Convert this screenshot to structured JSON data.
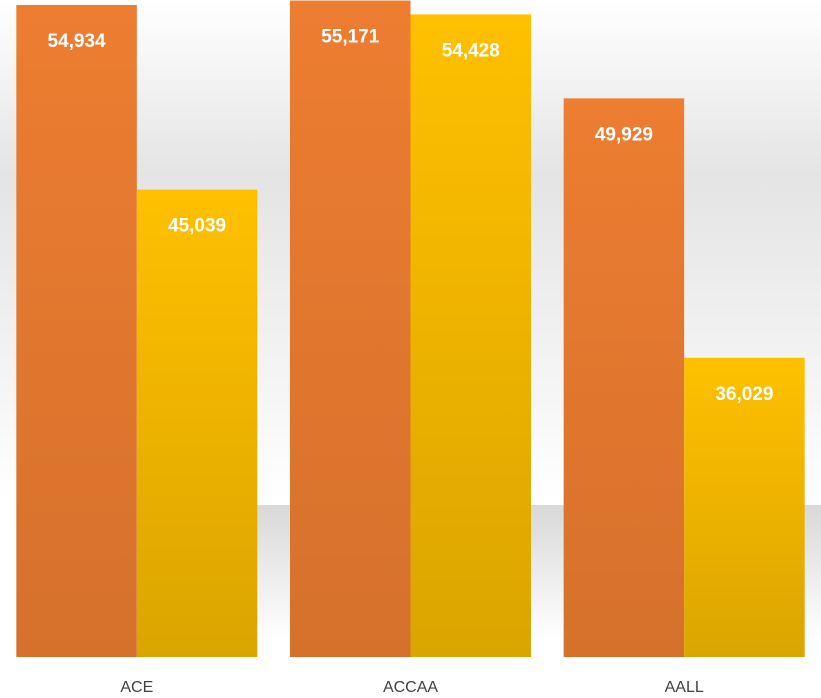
{
  "chart_data": {
    "type": "bar",
    "categories": [
      "ACE",
      "ACCAA",
      "AALL"
    ],
    "series": [
      {
        "color": "#ED7D31",
        "values": [
          54934,
          55171,
          49929
        ],
        "value_labels": [
          "54,934",
          "55,171",
          "49,929"
        ]
      },
      {
        "color": "#FFC000",
        "values": [
          45039,
          54428,
          36029
        ],
        "value_labels": [
          "45,039",
          "54,428",
          "36,029"
        ]
      }
    ],
    "ylim": [
      20000,
      55200
    ]
  }
}
